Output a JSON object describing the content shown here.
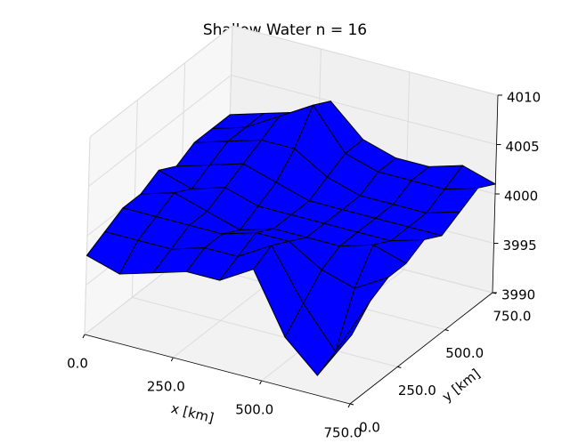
{
  "chart_data": {
    "type": "surface3d",
    "title": "Shallow Water n =  16",
    "x_label": "x [km]",
    "y_label": "y [km]",
    "color": "#0000ff",
    "x": [
      0,
      93.75,
      187.5,
      281.25,
      375,
      468.75,
      562.5,
      656.25,
      750
    ],
    "y": [
      0,
      93.75,
      187.5,
      281.25,
      375,
      468.75,
      562.5,
      656.25,
      750
    ],
    "z": [
      [
        3998,
        3997,
        3998,
        3999,
        3999,
        4001,
        3995,
        3992,
        3997
      ],
      [
        3999,
        3999,
        3999,
        4000,
        4000,
        4002,
        3997,
        3993,
        3999
      ],
      [
        4000,
        4000,
        4000,
        4000,
        4001,
        4001,
        3999,
        3998,
        4000
      ],
      [
        4000,
        4001,
        4000,
        3999,
        4000,
        4000,
        4000,
        4001,
        4000
      ],
      [
        4001,
        4000,
        4001,
        4000,
        4000,
        4000,
        4000,
        4000,
        4001
      ],
      [
        4000,
        4001,
        4002,
        4001,
        4000,
        4000,
        4000,
        4000,
        4000
      ],
      [
        4001,
        4002,
        4003,
        4003,
        4001,
        4000,
        4000,
        4000,
        4001
      ],
      [
        4001,
        4002,
        4004,
        4006,
        4002,
        4001,
        4001,
        4001,
        4002
      ],
      [
        4001,
        4002,
        4003,
        4005,
        4002,
        4001,
        4001,
        4002,
        4001
      ]
    ],
    "xlim": [
      0,
      750
    ],
    "ylim": [
      0,
      750
    ],
    "zlim": [
      3990,
      4010
    ],
    "xticks": [
      {
        "value": 0,
        "label": "0.0"
      },
      {
        "value": 250,
        "label": "250.0"
      },
      {
        "value": 500,
        "label": "500.0"
      },
      {
        "value": 750,
        "label": "750.0"
      }
    ],
    "yticks": [
      {
        "value": 0,
        "label": "0.0"
      },
      {
        "value": 250,
        "label": "250.0"
      },
      {
        "value": 500,
        "label": "500.0"
      },
      {
        "value": 750,
        "label": "750.0"
      }
    ],
    "zticks": [
      3990,
      3995,
      4000,
      4005,
      4010
    ],
    "grid": true
  }
}
